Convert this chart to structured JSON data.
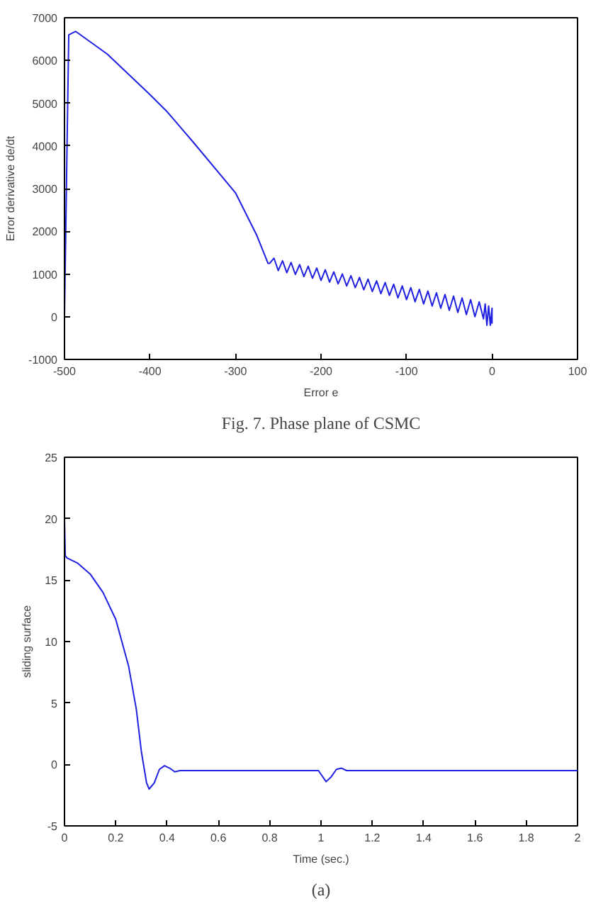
{
  "chart_data": [
    {
      "type": "line",
      "xlabel": "Error e",
      "ylabel": "Error derivative de/dt",
      "annotations": [
        "Fig. 7. Phase plane of CSMC"
      ],
      "xlim": [
        -500,
        100
      ],
      "ylim": [
        -1000,
        7000
      ],
      "xticks": [
        -500,
        -400,
        -300,
        -200,
        -100,
        0,
        100
      ],
      "yticks": [
        -1000,
        0,
        1000,
        2000,
        3000,
        4000,
        5000,
        6000,
        7000
      ],
      "grid": false,
      "series": [
        {
          "color": "#2020e0",
          "x": [
            -500,
            -497,
            -495,
            -490,
            -487,
            -480,
            -450,
            -400,
            -380,
            -350,
            -300,
            -275,
            -262,
            -260,
            -255,
            -250,
            -245,
            -240,
            -235,
            -230,
            -225,
            -220,
            -215,
            -210,
            -205,
            -200,
            -195,
            -190,
            -185,
            -180,
            -175,
            -170,
            -165,
            -160,
            -155,
            -150,
            -145,
            -140,
            -135,
            -130,
            -125,
            -120,
            -115,
            -110,
            -105,
            -100,
            -95,
            -90,
            -85,
            -80,
            -75,
            -70,
            -65,
            -60,
            -55,
            -50,
            -45,
            -40,
            -35,
            -30,
            -25,
            -20,
            -15,
            -10,
            -8,
            -6,
            -4,
            -2,
            0,
            0,
            0
          ],
          "values": [
            0,
            4000,
            6600,
            6650,
            6680,
            6580,
            6150,
            5200,
            4800,
            4100,
            2900,
            1900,
            1250,
            1250,
            1370,
            1080,
            1310,
            1030,
            1270,
            990,
            1220,
            940,
            1180,
            900,
            1140,
            850,
            1100,
            810,
            1050,
            770,
            1000,
            720,
            960,
            680,
            920,
            630,
            880,
            590,
            840,
            540,
            800,
            500,
            760,
            440,
            720,
            400,
            680,
            350,
            640,
            300,
            600,
            250,
            560,
            200,
            520,
            150,
            480,
            100,
            440,
            50,
            400,
            0,
            350,
            -50,
            300,
            -200,
            250,
            -200,
            200,
            -150,
            100
          ]
        }
      ]
    },
    {
      "type": "line",
      "xlabel": "Time (sec.)",
      "ylabel": "sliding surface",
      "annotations": [
        "(a)"
      ],
      "xlim": [
        0,
        2
      ],
      "ylim": [
        -5,
        25
      ],
      "xticks": [
        0,
        0.2,
        0.4,
        0.6,
        0.8,
        1,
        1.2,
        1.4,
        1.6,
        1.8,
        2
      ],
      "yticks": [
        -5,
        0,
        5,
        10,
        15,
        20,
        25
      ],
      "grid": false,
      "series": [
        {
          "color": "#2020e0",
          "x": [
            0,
            0.003,
            0.01,
            0.05,
            0.1,
            0.15,
            0.2,
            0.25,
            0.28,
            0.3,
            0.32,
            0.33,
            0.35,
            0.37,
            0.39,
            0.41,
            0.43,
            0.45,
            0.6,
            0.99,
            1.0,
            1.02,
            1.04,
            1.06,
            1.08,
            1.1,
            2
          ],
          "values": [
            20,
            17,
            16.8,
            16.4,
            15.5,
            14,
            11.8,
            8,
            4.5,
            1,
            -1.5,
            -2,
            -1.5,
            -0.4,
            -0.1,
            -0.3,
            -0.6,
            -0.5,
            -0.5,
            -0.5,
            -0.8,
            -1.4,
            -1.0,
            -0.4,
            -0.3,
            -0.5,
            -0.5
          ]
        }
      ]
    }
  ]
}
